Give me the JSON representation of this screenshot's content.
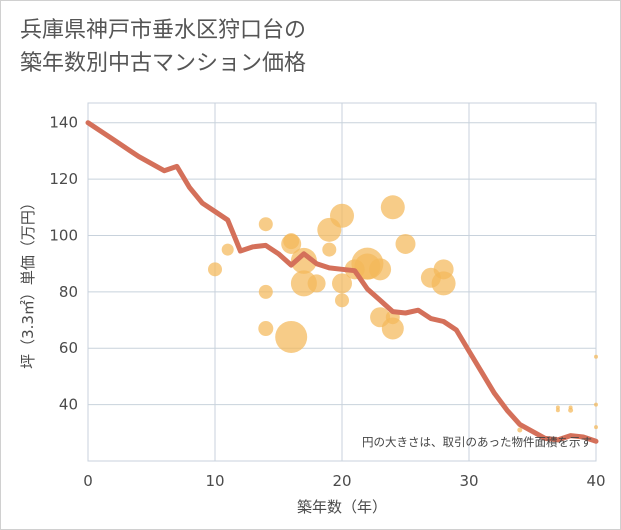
{
  "title": {
    "line1": "兵庫県神戸市垂水区狩口台の",
    "line2": "築年数別中古マンション価格"
  },
  "colors": {
    "line": "#d4705a",
    "bubble": "#f4b95a",
    "grid": "#c8d2dc",
    "plot_border": "#c8d2dc"
  },
  "chart_data": {
    "type": "scatter",
    "xlabel": "築年数（年）",
    "ylabel": "坪（3.3㎡）単価（万円）",
    "xlim": [
      0,
      40
    ],
    "ylim": [
      20,
      147
    ],
    "xticks": [
      0,
      10,
      20,
      30,
      40
    ],
    "yticks": [
      40,
      60,
      80,
      100,
      120,
      140
    ],
    "grid": true,
    "note": "円の大きさは、取引のあった物件面積を示す",
    "series": [
      {
        "kind": "line",
        "x": [
          0,
          2,
          4,
          6,
          7,
          8,
          9,
          10,
          11,
          12,
          13,
          14,
          15,
          16,
          17,
          18,
          19,
          20,
          21,
          22,
          23,
          24,
          25,
          26,
          27,
          28,
          29,
          30,
          31,
          32,
          33,
          34,
          35,
          36,
          37,
          38,
          39,
          40
        ],
        "y": [
          140,
          134,
          128,
          123,
          124.5,
          117,
          111.5,
          108.5,
          105.5,
          94.5,
          96,
          96.5,
          93.5,
          89.5,
          93.5,
          90,
          88.5,
          88,
          87.5,
          81,
          77,
          73,
          72.5,
          73.5,
          70.5,
          69.5,
          66.5,
          59,
          51.5,
          44,
          38,
          33,
          30.5,
          28,
          27.5,
          29,
          28.5,
          27
        ]
      },
      {
        "kind": "bubble",
        "points": [
          {
            "x": 10,
            "y": 88,
            "size": 7
          },
          {
            "x": 11,
            "y": 95,
            "size": 6
          },
          {
            "x": 14,
            "y": 104,
            "size": 7
          },
          {
            "x": 14,
            "y": 80,
            "size": 7
          },
          {
            "x": 14,
            "y": 67,
            "size": 7.5
          },
          {
            "x": 16,
            "y": 98,
            "size": 8
          },
          {
            "x": 16,
            "y": 97,
            "size": 10
          },
          {
            "x": 16,
            "y": 64,
            "size": 16
          },
          {
            "x": 17,
            "y": 91,
            "size": 13
          },
          {
            "x": 17,
            "y": 83,
            "size": 13
          },
          {
            "x": 18,
            "y": 83,
            "size": 9
          },
          {
            "x": 19,
            "y": 102,
            "size": 12
          },
          {
            "x": 19,
            "y": 95,
            "size": 7
          },
          {
            "x": 20,
            "y": 107,
            "size": 12
          },
          {
            "x": 20,
            "y": 83,
            "size": 10
          },
          {
            "x": 20,
            "y": 77,
            "size": 7
          },
          {
            "x": 21,
            "y": 88,
            "size": 10
          },
          {
            "x": 22,
            "y": 90,
            "size": 16
          },
          {
            "x": 22,
            "y": 89,
            "size": 13
          },
          {
            "x": 23,
            "y": 88,
            "size": 11
          },
          {
            "x": 23,
            "y": 71,
            "size": 10
          },
          {
            "x": 24,
            "y": 110,
            "size": 12
          },
          {
            "x": 24,
            "y": 71,
            "size": 7
          },
          {
            "x": 24,
            "y": 67,
            "size": 11
          },
          {
            "x": 25,
            "y": 97,
            "size": 10
          },
          {
            "x": 27,
            "y": 85,
            "size": 10
          },
          {
            "x": 28,
            "y": 88,
            "size": 10
          },
          {
            "x": 28,
            "y": 83,
            "size": 12
          },
          {
            "x": 34,
            "y": 31,
            "size": 2.5
          },
          {
            "x": 37,
            "y": 39,
            "size": 2
          },
          {
            "x": 37,
            "y": 38,
            "size": 2
          },
          {
            "x": 38,
            "y": 38,
            "size": 2.5
          },
          {
            "x": 38,
            "y": 39,
            "size": 2
          },
          {
            "x": 40,
            "y": 57,
            "size": 2
          },
          {
            "x": 40,
            "y": 40,
            "size": 2
          },
          {
            "x": 40,
            "y": 32,
            "size": 2
          }
        ]
      }
    ]
  }
}
